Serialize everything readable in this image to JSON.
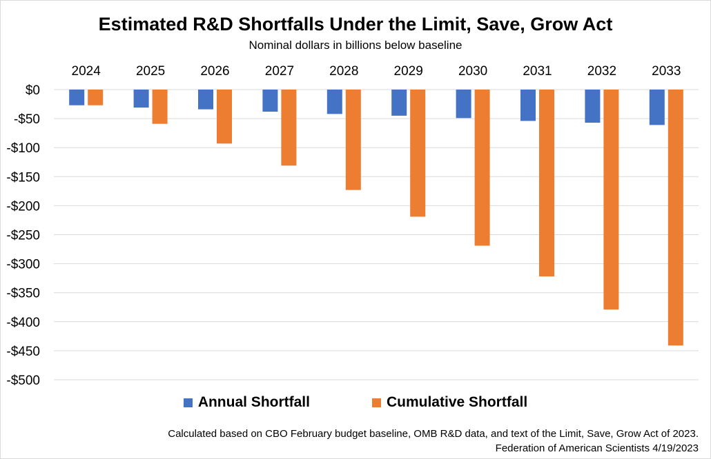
{
  "chart_data": {
    "type": "bar",
    "title": "Estimated R&D Shortfalls Under the Limit, Save, Grow Act",
    "subtitle": "Nominal dollars in billions below baseline",
    "categories": [
      "2024",
      "2025",
      "2026",
      "2027",
      "2028",
      "2029",
      "2030",
      "2031",
      "2032",
      "2033"
    ],
    "series": [
      {
        "name": "Annual Shortfall",
        "color": "#4472C4",
        "values": [
          -27,
          -31,
          -34,
          -38,
          -42,
          -45,
          -49,
          -54,
          -57,
          -61
        ]
      },
      {
        "name": "Cumulative Shortfall",
        "color": "#ED7D31",
        "values": [
          -27,
          -59,
          -93,
          -131,
          -173,
          -219,
          -269,
          -322,
          -379,
          -441
        ]
      }
    ],
    "y_ticks": [
      "$0",
      "-$50",
      "-$100",
      "-$150",
      "-$200",
      "-$250",
      "-$300",
      "-$350",
      "-$400",
      "-$450",
      "-$500"
    ],
    "ylim": [
      -500,
      0
    ],
    "x_axis_position": "top",
    "grid": true,
    "legend": "bottom"
  },
  "footnote": {
    "line1": "Calculated based on CBO February budget baseline, OMB R&D data, and text of the Limit, Save, Grow Act of 2023.",
    "line2": "Federation of American Scientists 4/19/2023"
  }
}
